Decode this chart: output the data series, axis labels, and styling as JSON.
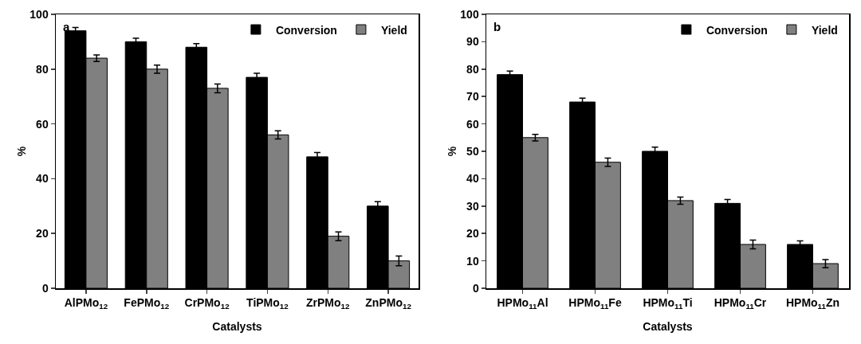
{
  "chart_data": [
    {
      "type": "bar",
      "xlabel": "Catalysts",
      "ylabel": "%",
      "annotations": [
        "a"
      ],
      "categories": [
        "AlPMo$_{12}$",
        "FePMo$_{12}$",
        "CrPMo$_{12}$",
        "TiPMo$_{12}$",
        "ZrPMo$_{12}$",
        "ZnPMo$_{12}$"
      ],
      "series": [
        {
          "name": "Conversion",
          "color": "#000000",
          "values": [
            94,
            90,
            88,
            77,
            48,
            30
          ],
          "errors": [
            1.2,
            1.3,
            1.3,
            1.5,
            1.6,
            1.6
          ]
        },
        {
          "name": "Yield",
          "color": "#808080",
          "values": [
            84,
            80,
            73,
            56,
            19,
            10
          ],
          "errors": [
            1.2,
            1.5,
            1.6,
            1.5,
            1.6,
            1.8
          ]
        }
      ],
      "ylim": [
        0,
        100
      ],
      "yticks": [
        0,
        20,
        40,
        60,
        80,
        100
      ],
      "grid": false,
      "legend": "top right"
    },
    {
      "type": "bar",
      "xlabel": "Catalysts",
      "ylabel": "%",
      "annotations": [
        "b"
      ],
      "categories": [
        "HPMo$_{11}$Al",
        "HPMo$_{11}$Fe",
        "HPMo$_{11}$Ti",
        "HPMo$_{11}$Cr",
        "HPMo$_{11}$Zn"
      ],
      "series": [
        {
          "name": "Conversion",
          "color": "#000000",
          "values": [
            78,
            68,
            50,
            31,
            16
          ],
          "errors": [
            1.3,
            1.4,
            1.5,
            1.4,
            1.3
          ]
        },
        {
          "name": "Yield",
          "color": "#808080",
          "values": [
            55,
            46,
            32,
            16,
            9
          ],
          "errors": [
            1.2,
            1.5,
            1.3,
            1.6,
            1.5
          ]
        }
      ],
      "ylim": [
        0,
        100
      ],
      "yticks": [
        0,
        10,
        20,
        30,
        40,
        50,
        60,
        70,
        80,
        90,
        100
      ],
      "grid": false,
      "legend": "top right"
    }
  ]
}
